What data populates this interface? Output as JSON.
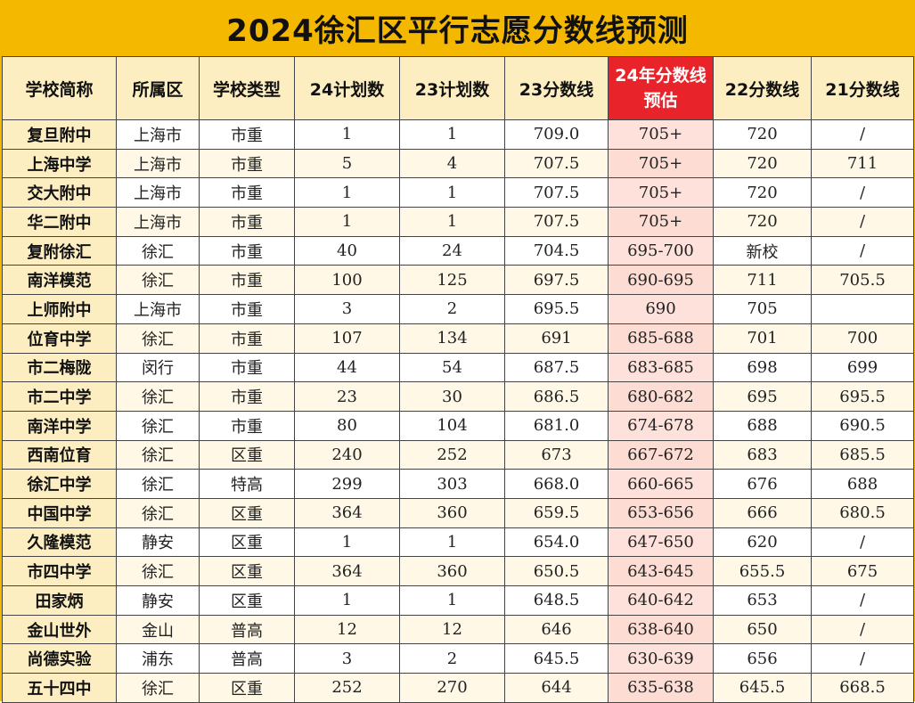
{
  "title": "2024徐汇区平行志愿分数线预测",
  "headers": [
    "学校简称",
    "所属区",
    "学校类型",
    "24计划数",
    "23计划数",
    "23分数线",
    "24年分数线预估",
    "22分数线",
    "21分数线"
  ],
  "rows": [
    [
      "复旦附中",
      "上海市",
      "市重",
      "1",
      "1",
      "709.0",
      "705+",
      "720",
      "/"
    ],
    [
      "上海中学",
      "上海市",
      "市重",
      "5",
      "4",
      "707.5",
      "705+",
      "720",
      "711"
    ],
    [
      "交大附中",
      "上海市",
      "市重",
      "1",
      "1",
      "707.5",
      "705+",
      "720",
      "/"
    ],
    [
      "华二附中",
      "上海市",
      "市重",
      "1",
      "1",
      "707.5",
      "705+",
      "720",
      "/"
    ],
    [
      "复附徐汇",
      "徐汇",
      "市重",
      "40",
      "24",
      "704.5",
      "695-700",
      "新校",
      "/"
    ],
    [
      "南洋模范",
      "徐汇",
      "市重",
      "100",
      "125",
      "697.5",
      "690-695",
      "711",
      "705.5"
    ],
    [
      "上师附中",
      "上海市",
      "市重",
      "3",
      "2",
      "695.5",
      "690",
      "705",
      ""
    ],
    [
      "位育中学",
      "徐汇",
      "市重",
      "107",
      "134",
      "691",
      "685-688",
      "701",
      "700"
    ],
    [
      "市二梅陇",
      "闵行",
      "市重",
      "44",
      "54",
      "687.5",
      "683-685",
      "698",
      "699"
    ],
    [
      "市二中学",
      "徐汇",
      "市重",
      "23",
      "30",
      "686.5",
      "680-682",
      "695",
      "695.5"
    ],
    [
      "南洋中学",
      "徐汇",
      "市重",
      "80",
      "104",
      "681.0",
      "674-678",
      "688",
      "690.5"
    ],
    [
      "西南位育",
      "徐汇",
      "区重",
      "240",
      "252",
      "673",
      "667-672",
      "683",
      "685.5"
    ],
    [
      "徐汇中学",
      "徐汇",
      "特高",
      "299",
      "303",
      "668.0",
      "660-665",
      "676",
      "688"
    ],
    [
      "中国中学",
      "徐汇",
      "区重",
      "364",
      "360",
      "659.5",
      "653-656",
      "666",
      "680.5"
    ],
    [
      "久隆模范",
      "静安",
      "区重",
      "1",
      "1",
      "654.0",
      "647-650",
      "620",
      "/"
    ],
    [
      "市四中学",
      "徐汇",
      "区重",
      "364",
      "360",
      "650.5",
      "643-645",
      "655.5",
      "675"
    ],
    [
      "田家炳",
      "静安",
      "区重",
      "1",
      "1",
      "648.5",
      "640-642",
      "653",
      "/"
    ],
    [
      "金山世外",
      "金山",
      "普高",
      "12",
      "12",
      "646",
      "638-640",
      "650",
      "/"
    ],
    [
      "尚德实验",
      "浦东",
      "普高",
      "3",
      "2",
      "645.5",
      "630-639",
      "656",
      "/"
    ],
    [
      "五十四中",
      "徐汇",
      "区重",
      "252",
      "270",
      "644",
      "635-638",
      "645.5",
      "668.5"
    ]
  ],
  "colors": {
    "banner": "#f5b800",
    "highlight_header": "#e8232a",
    "highlight_cell": "#fde1da",
    "name_cell": "#fdeec2"
  }
}
